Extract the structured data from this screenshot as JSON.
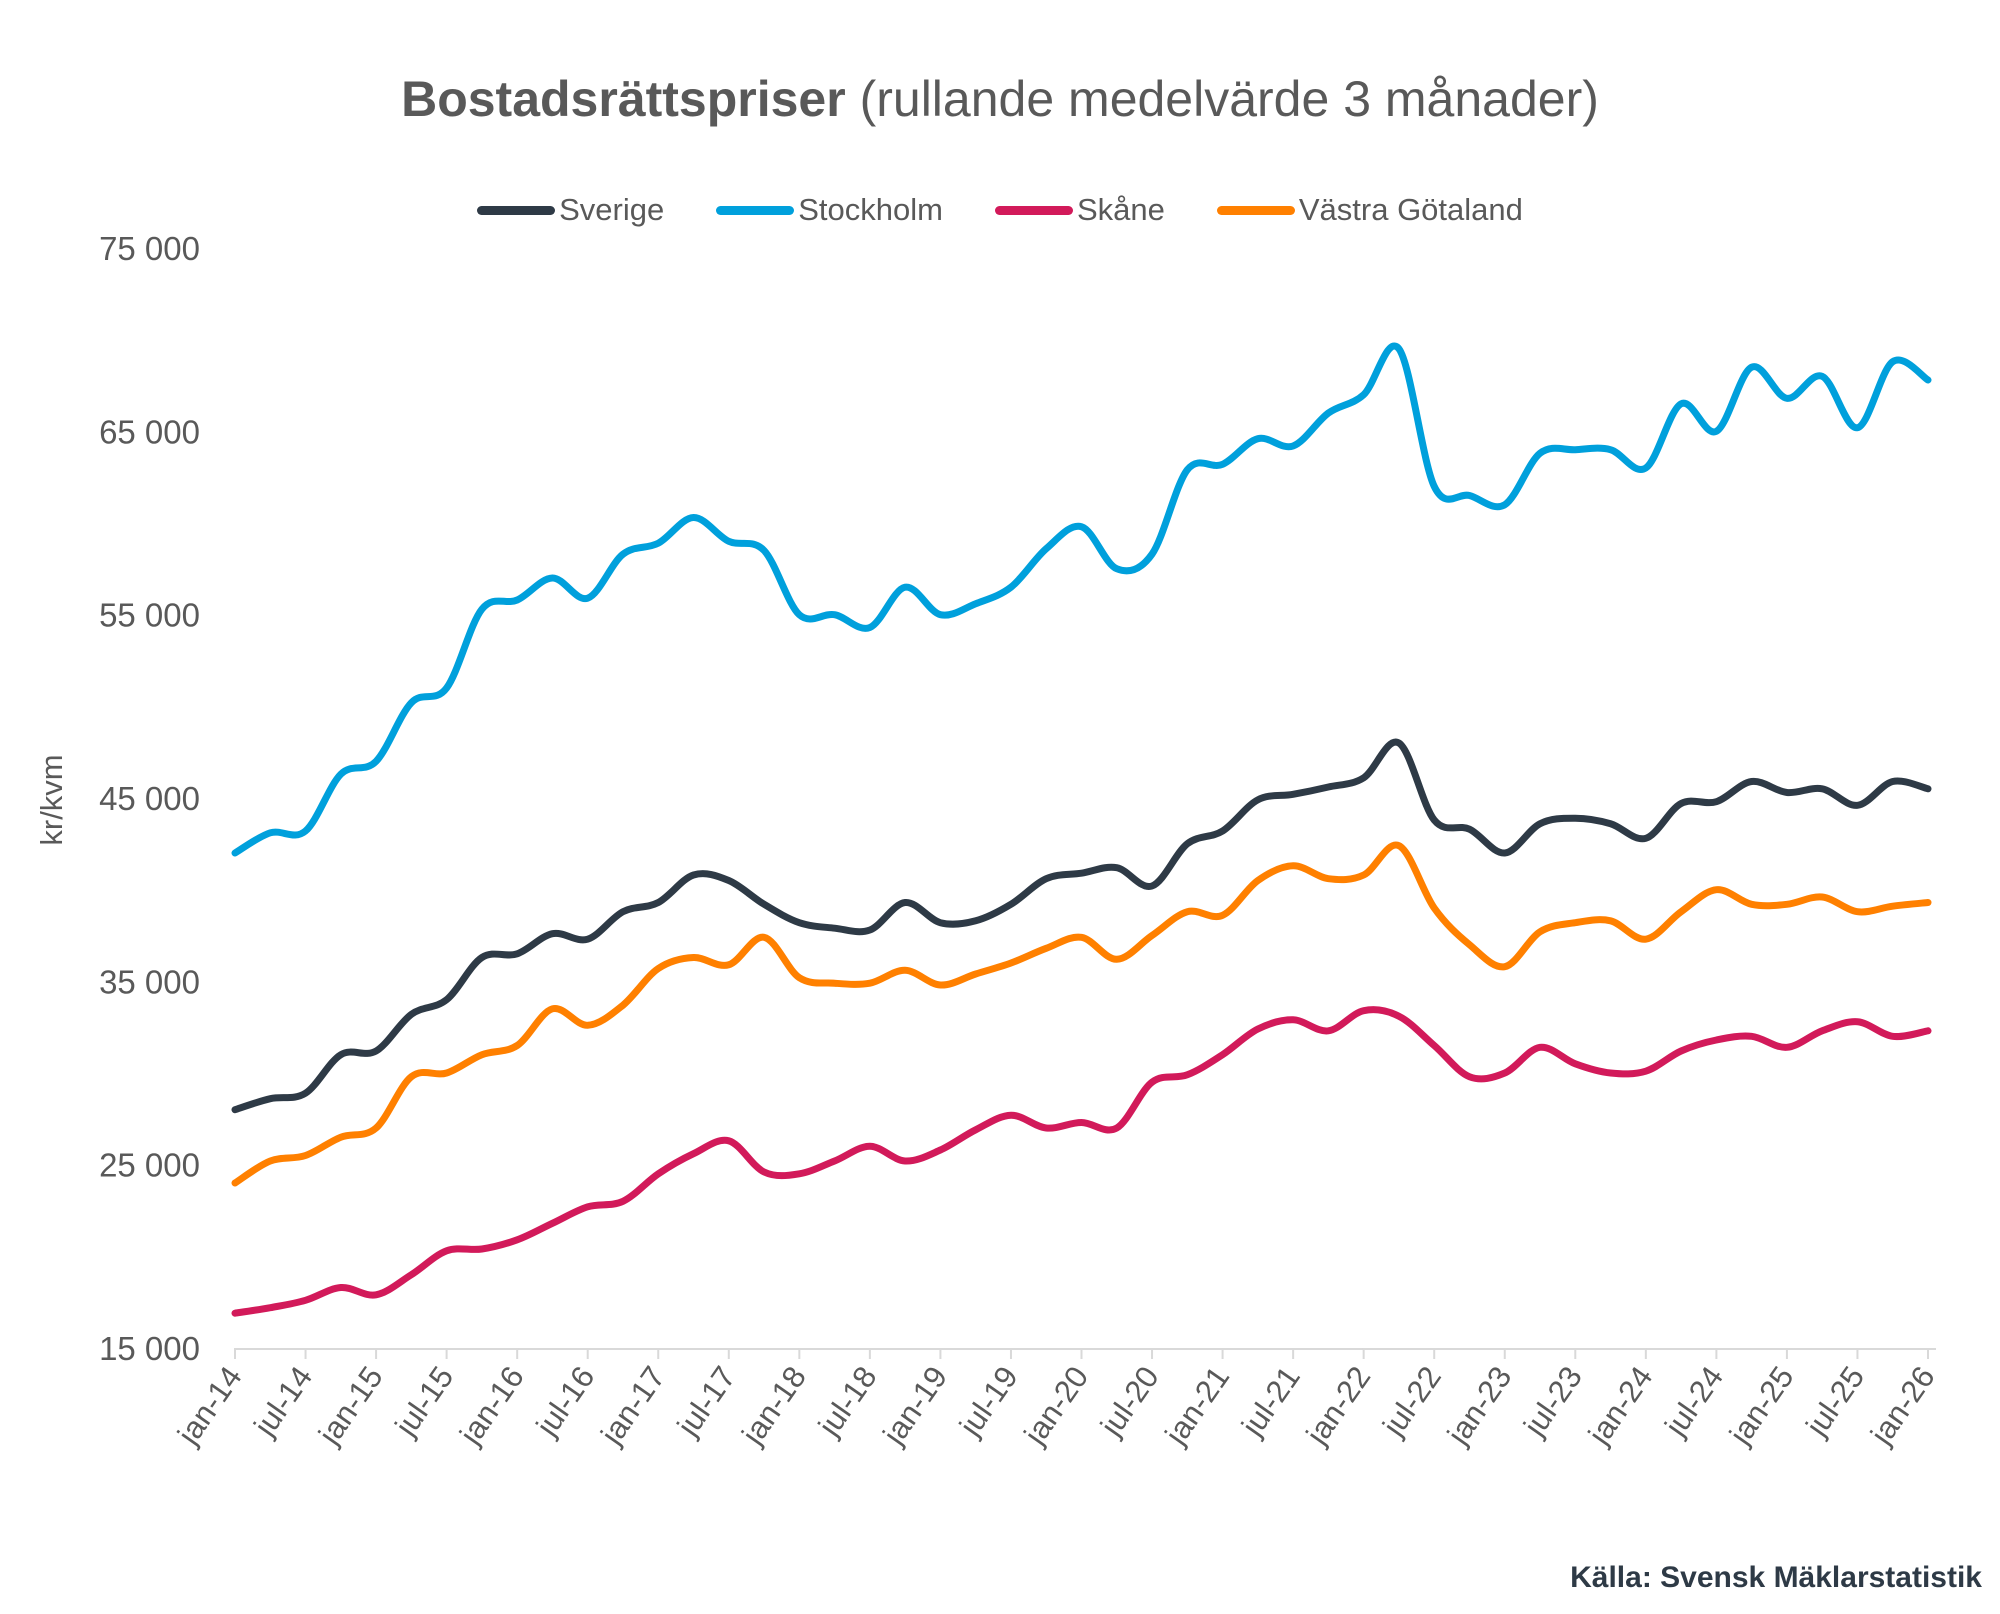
{
  "chart_data": {
    "type": "line",
    "title": "Bostadsrättspriser",
    "subtitle": "(rullande medelvärde 3 månader)",
    "xlabel": "",
    "ylabel": "kr/kvm",
    "ylim": [
      15000,
      75000
    ],
    "yticks": [
      15000,
      25000,
      35000,
      45000,
      55000,
      65000,
      75000
    ],
    "ytick_labels": [
      "15 000",
      "25 000",
      "35 000",
      "45 000",
      "55 000",
      "65 000",
      "75 000"
    ],
    "xtick_labels": [
      "jan-14",
      "jul-14",
      "jan-15",
      "jul-15",
      "jan-16",
      "jul-16",
      "jan-17",
      "jul-17",
      "jan-18",
      "jul-18",
      "jan-19",
      "jul-19",
      "jan-20",
      "jul-20",
      "jan-21",
      "jul-21",
      "jan-22",
      "jul-22",
      "jan-23",
      "jul-23",
      "jan-24",
      "jul-24",
      "jan-25",
      "jul-25",
      "jan-26"
    ],
    "x_resolution": "quarterly (jan, apr, jul, oct)",
    "legend_position": "top-center",
    "grid": false,
    "series": [
      {
        "name": "Sverige",
        "color": "#2e3a46",
        "values": [
          28000,
          28600,
          28900,
          31000,
          31200,
          33200,
          34000,
          36300,
          36500,
          37600,
          37300,
          38800,
          39300,
          40800,
          40500,
          39200,
          38200,
          37900,
          37800,
          39300,
          38200,
          38300,
          39200,
          40600,
          40900,
          41200,
          40200,
          42500,
          43200,
          44900,
          45200,
          45600,
          46100,
          48000,
          43800,
          43300,
          42000,
          43600,
          43900,
          43600,
          42800,
          44700,
          44800,
          45900,
          45300,
          45500,
          44600,
          45900,
          45500
        ]
      },
      {
        "name": "Stockholm",
        "color": "#00a0dc",
        "values": [
          42000,
          43100,
          43200,
          46300,
          47000,
          50200,
          51000,
          55300,
          55800,
          57000,
          55900,
          58300,
          58900,
          60300,
          59000,
          58500,
          55000,
          55000,
          54300,
          56500,
          55000,
          55600,
          56500,
          58600,
          59800,
          57500,
          58300,
          62900,
          63200,
          64600,
          64200,
          66000,
          67000,
          69500,
          62000,
          61500,
          61000,
          63800,
          64000,
          64000,
          63000,
          66500,
          65000,
          68500,
          66800,
          68000,
          65200,
          68800,
          67800
        ]
      },
      {
        "name": "Skåne",
        "color": "#d21a5a",
        "values": [
          16900,
          17200,
          17600,
          18300,
          17900,
          19000,
          20300,
          20400,
          20900,
          21800,
          22700,
          23000,
          24500,
          25600,
          26300,
          24600,
          24500,
          25200,
          26000,
          25200,
          25800,
          26900,
          27700,
          27000,
          27300,
          27000,
          29500,
          29900,
          31000,
          32400,
          32900,
          32300,
          33400,
          33100,
          31500,
          29800,
          30000,
          31400,
          30500,
          30000,
          30100,
          31200,
          31800,
          32000,
          31400,
          32300,
          32800,
          32000,
          32300
        ]
      },
      {
        "name": "Västra Götaland",
        "color": "#ff8000",
        "values": [
          24000,
          25200,
          25500,
          26500,
          27000,
          29800,
          30000,
          31000,
          31500,
          33500,
          32600,
          33700,
          35700,
          36300,
          35900,
          37400,
          35200,
          34900,
          34900,
          35600,
          34800,
          35400,
          36000,
          36800,
          37400,
          36200,
          37500,
          38800,
          38600,
          40500,
          41300,
          40600,
          40800,
          42400,
          39000,
          37000,
          35800,
          37700,
          38200,
          38300,
          37300,
          38800,
          40000,
          39200,
          39200,
          39600,
          38800,
          39100,
          39300
        ]
      }
    ]
  },
  "header": {
    "title_bold": "Bostadsrättspriser",
    "title_rest": " (rullande medelvärde 3 månader)"
  },
  "footer": {
    "source": "Källa: Svensk Mäklarstatistik"
  }
}
